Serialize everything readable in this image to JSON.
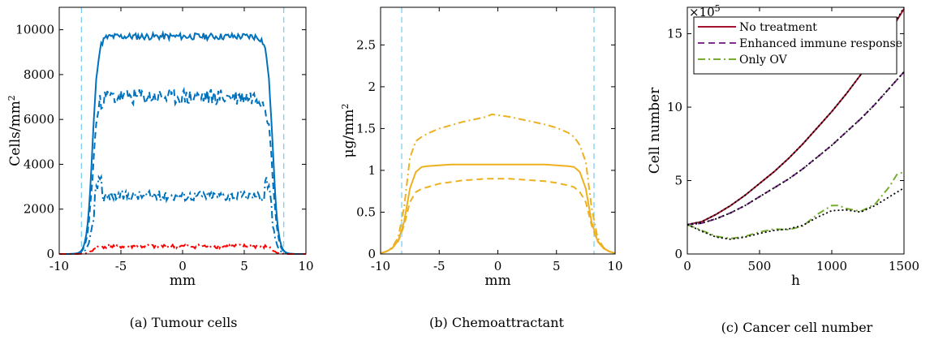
{
  "chart_data": [
    {
      "type": "line",
      "caption": "(a) Tumour cells",
      "xlabel": "mm",
      "ylabel_main": "Cells/mm",
      "ylabel_sup": "2",
      "xlim": [
        -10,
        10
      ],
      "ylim": [
        0,
        11000
      ],
      "xticks": [
        -10,
        -5,
        0,
        5,
        10
      ],
      "xtick_labels": [
        "-10",
        "-5",
        "0",
        "5",
        "10"
      ],
      "yticks": [
        0,
        2000,
        4000,
        6000,
        8000,
        10000
      ],
      "ytick_labels": [
        "0",
        "2000",
        "4000",
        "6000",
        "8000",
        "10000"
      ],
      "vlines": [
        -8.2,
        8.2
      ],
      "vline_color": "#7dcff0",
      "series": [
        {
          "style": "solid",
          "color": "#0072bd",
          "level": 9700,
          "noise": 150,
          "edge": 7.0,
          "seed": 11
        },
        {
          "style": "dashed",
          "color": "#0072bd",
          "level": 7000,
          "noise": 380,
          "edge": 7.0,
          "seed": 23,
          "spike": 7600
        },
        {
          "style": "dashdot",
          "color": "#0072bd",
          "level": 2600,
          "noise": 230,
          "edge": 7.0,
          "seed": 37,
          "spike": 3900
        },
        {
          "style": "dashdot",
          "color": "#ff0000",
          "level": 340,
          "noise": 90,
          "edge": 7.0,
          "seed": 41
        }
      ]
    },
    {
      "type": "line",
      "caption": "(b) Chemoattractant",
      "xlabel": "mm",
      "ylabel_main": "μg/mm",
      "ylabel_sup": "2",
      "xlim": [
        -10,
        10
      ],
      "ylim": [
        0,
        2.95
      ],
      "xticks": [
        -10,
        -5,
        0,
        5,
        10
      ],
      "xtick_labels": [
        "-10",
        "-5",
        "0",
        "5",
        "10"
      ],
      "yticks": [
        0,
        0.5,
        1,
        1.5,
        2,
        2.5
      ],
      "ytick_labels": [
        "0",
        "0.5",
        "1",
        "1.5",
        "2",
        "2.5"
      ],
      "vlines": [
        -8.2,
        8.2
      ],
      "vline_color": "#7dcff0",
      "series": [
        {
          "style": "solid",
          "color": "#edb120",
          "x": [
            -10,
            -9.5,
            -9,
            -8.5,
            -8,
            -7.5,
            -7,
            -6.5,
            -6,
            -5,
            -4,
            -3,
            -2,
            -1,
            0,
            1,
            2,
            3,
            4,
            5,
            6,
            6.5,
            7,
            7.5,
            8,
            8.5,
            9,
            9.5,
            10
          ],
          "y": [
            0.01,
            0.03,
            0.07,
            0.16,
            0.38,
            0.78,
            0.98,
            1.04,
            1.05,
            1.06,
            1.07,
            1.07,
            1.07,
            1.07,
            1.07,
            1.07,
            1.07,
            1.07,
            1.07,
            1.06,
            1.05,
            1.04,
            0.98,
            0.78,
            0.38,
            0.16,
            0.07,
            0.03,
            0.01
          ]
        },
        {
          "style": "dashed",
          "color": "#edb120",
          "x": [
            -10,
            -9.5,
            -9,
            -8.5,
            -8,
            -7.5,
            -7,
            -6.5,
            -6,
            -5,
            -4,
            -3,
            -2,
            -1,
            0,
            1,
            2,
            3,
            4,
            5,
            6,
            6.5,
            7,
            7.5,
            8,
            8.5,
            9,
            9.5,
            10
          ],
          "y": [
            0.01,
            0.03,
            0.07,
            0.15,
            0.34,
            0.62,
            0.74,
            0.78,
            0.8,
            0.84,
            0.86,
            0.88,
            0.89,
            0.9,
            0.9,
            0.9,
            0.89,
            0.88,
            0.87,
            0.85,
            0.82,
            0.8,
            0.74,
            0.62,
            0.34,
            0.15,
            0.07,
            0.03,
            0.01
          ]
        },
        {
          "style": "dashdot",
          "color": "#edb120",
          "x": [
            -10,
            -9.5,
            -9,
            -8.5,
            -8,
            -7.5,
            -7,
            -6.5,
            -6,
            -5,
            -4,
            -3,
            -2,
            -1,
            -0.5,
            0,
            1,
            2,
            3,
            4,
            5,
            6,
            6.5,
            7,
            7.5,
            8,
            8.5,
            9,
            9.5,
            10
          ],
          "y": [
            0.01,
            0.03,
            0.08,
            0.2,
            0.55,
            1.15,
            1.35,
            1.4,
            1.44,
            1.5,
            1.54,
            1.58,
            1.61,
            1.64,
            1.67,
            1.66,
            1.64,
            1.61,
            1.58,
            1.55,
            1.51,
            1.45,
            1.4,
            1.3,
            1.1,
            0.55,
            0.2,
            0.08,
            0.03,
            0.01
          ]
        }
      ]
    },
    {
      "type": "line",
      "caption": "(c) Cancer cell number",
      "xlabel": "h",
      "ylabel_main": "Cell number",
      "exponent_prefix": "×10",
      "exponent_sup": "5",
      "xlim": [
        0,
        1500
      ],
      "ylim": [
        0,
        16.8
      ],
      "xticks": [
        0,
        500,
        1000,
        1500
      ],
      "xtick_labels": [
        "0",
        "500",
        "1000",
        "1500"
      ],
      "yticks": [
        0,
        5,
        10,
        15
      ],
      "ytick_labels": [
        "0",
        "5",
        "10",
        "15"
      ],
      "legend_position": "top-left",
      "series": [
        {
          "name": "No treatment",
          "style": "solid",
          "color": "#a2142f",
          "x": [
            0,
            100,
            200,
            300,
            400,
            500,
            600,
            700,
            800,
            900,
            1000,
            1100,
            1200,
            1300,
            1400,
            1500
          ],
          "y": [
            2.0,
            2.2,
            2.7,
            3.3,
            4.0,
            4.8,
            5.6,
            6.5,
            7.5,
            8.6,
            9.7,
            10.9,
            12.2,
            13.6,
            15.1,
            16.7
          ]
        },
        {
          "name": "Enhanced immune response",
          "style": "dashed",
          "color": "#7e2f8e",
          "x": [
            0,
            100,
            200,
            300,
            400,
            500,
            600,
            700,
            800,
            900,
            1000,
            1100,
            1200,
            1300,
            1400,
            1500
          ],
          "y": [
            2.0,
            2.1,
            2.4,
            2.8,
            3.3,
            3.9,
            4.5,
            5.1,
            5.8,
            6.6,
            7.4,
            8.3,
            9.2,
            10.2,
            11.3,
            12.4
          ]
        },
        {
          "name": "Only OV",
          "style": "dashdot",
          "color": "#77ac30",
          "x": [
            0,
            100,
            200,
            300,
            400,
            500,
            600,
            700,
            800,
            900,
            1000,
            1050,
            1100,
            1200,
            1300,
            1400,
            1450,
            1500
          ],
          "y": [
            2.0,
            1.6,
            1.2,
            1.05,
            1.2,
            1.5,
            1.7,
            1.65,
            1.9,
            2.7,
            3.3,
            3.3,
            3.1,
            2.9,
            3.4,
            4.6,
            5.4,
            5.6
          ]
        },
        {
          "style": "dotted",
          "color": "#000000",
          "x": [
            0,
            100,
            200,
            300,
            400,
            500,
            600,
            700,
            800,
            900,
            1000,
            1100,
            1200,
            1300,
            1400,
            1500
          ],
          "y": [
            2.0,
            2.2,
            2.7,
            3.3,
            4.0,
            4.8,
            5.6,
            6.5,
            7.5,
            8.6,
            9.7,
            10.9,
            12.2,
            13.6,
            15.1,
            16.8
          ]
        },
        {
          "style": "dotted",
          "color": "#000000",
          "x": [
            0,
            100,
            200,
            300,
            400,
            500,
            600,
            700,
            800,
            900,
            1000,
            1100,
            1200,
            1300,
            1400,
            1500
          ],
          "y": [
            2.0,
            2.1,
            2.4,
            2.8,
            3.3,
            3.9,
            4.5,
            5.1,
            5.8,
            6.6,
            7.4,
            8.3,
            9.2,
            10.2,
            11.3,
            12.4
          ]
        },
        {
          "style": "dotted",
          "color": "#000000",
          "x": [
            0,
            100,
            200,
            300,
            400,
            500,
            600,
            700,
            800,
            900,
            1000,
            1100,
            1200,
            1300,
            1400,
            1500
          ],
          "y": [
            2.0,
            1.55,
            1.15,
            1.0,
            1.15,
            1.4,
            1.6,
            1.7,
            1.95,
            2.5,
            2.95,
            3.0,
            2.85,
            3.3,
            3.9,
            4.5
          ]
        }
      ]
    }
  ]
}
